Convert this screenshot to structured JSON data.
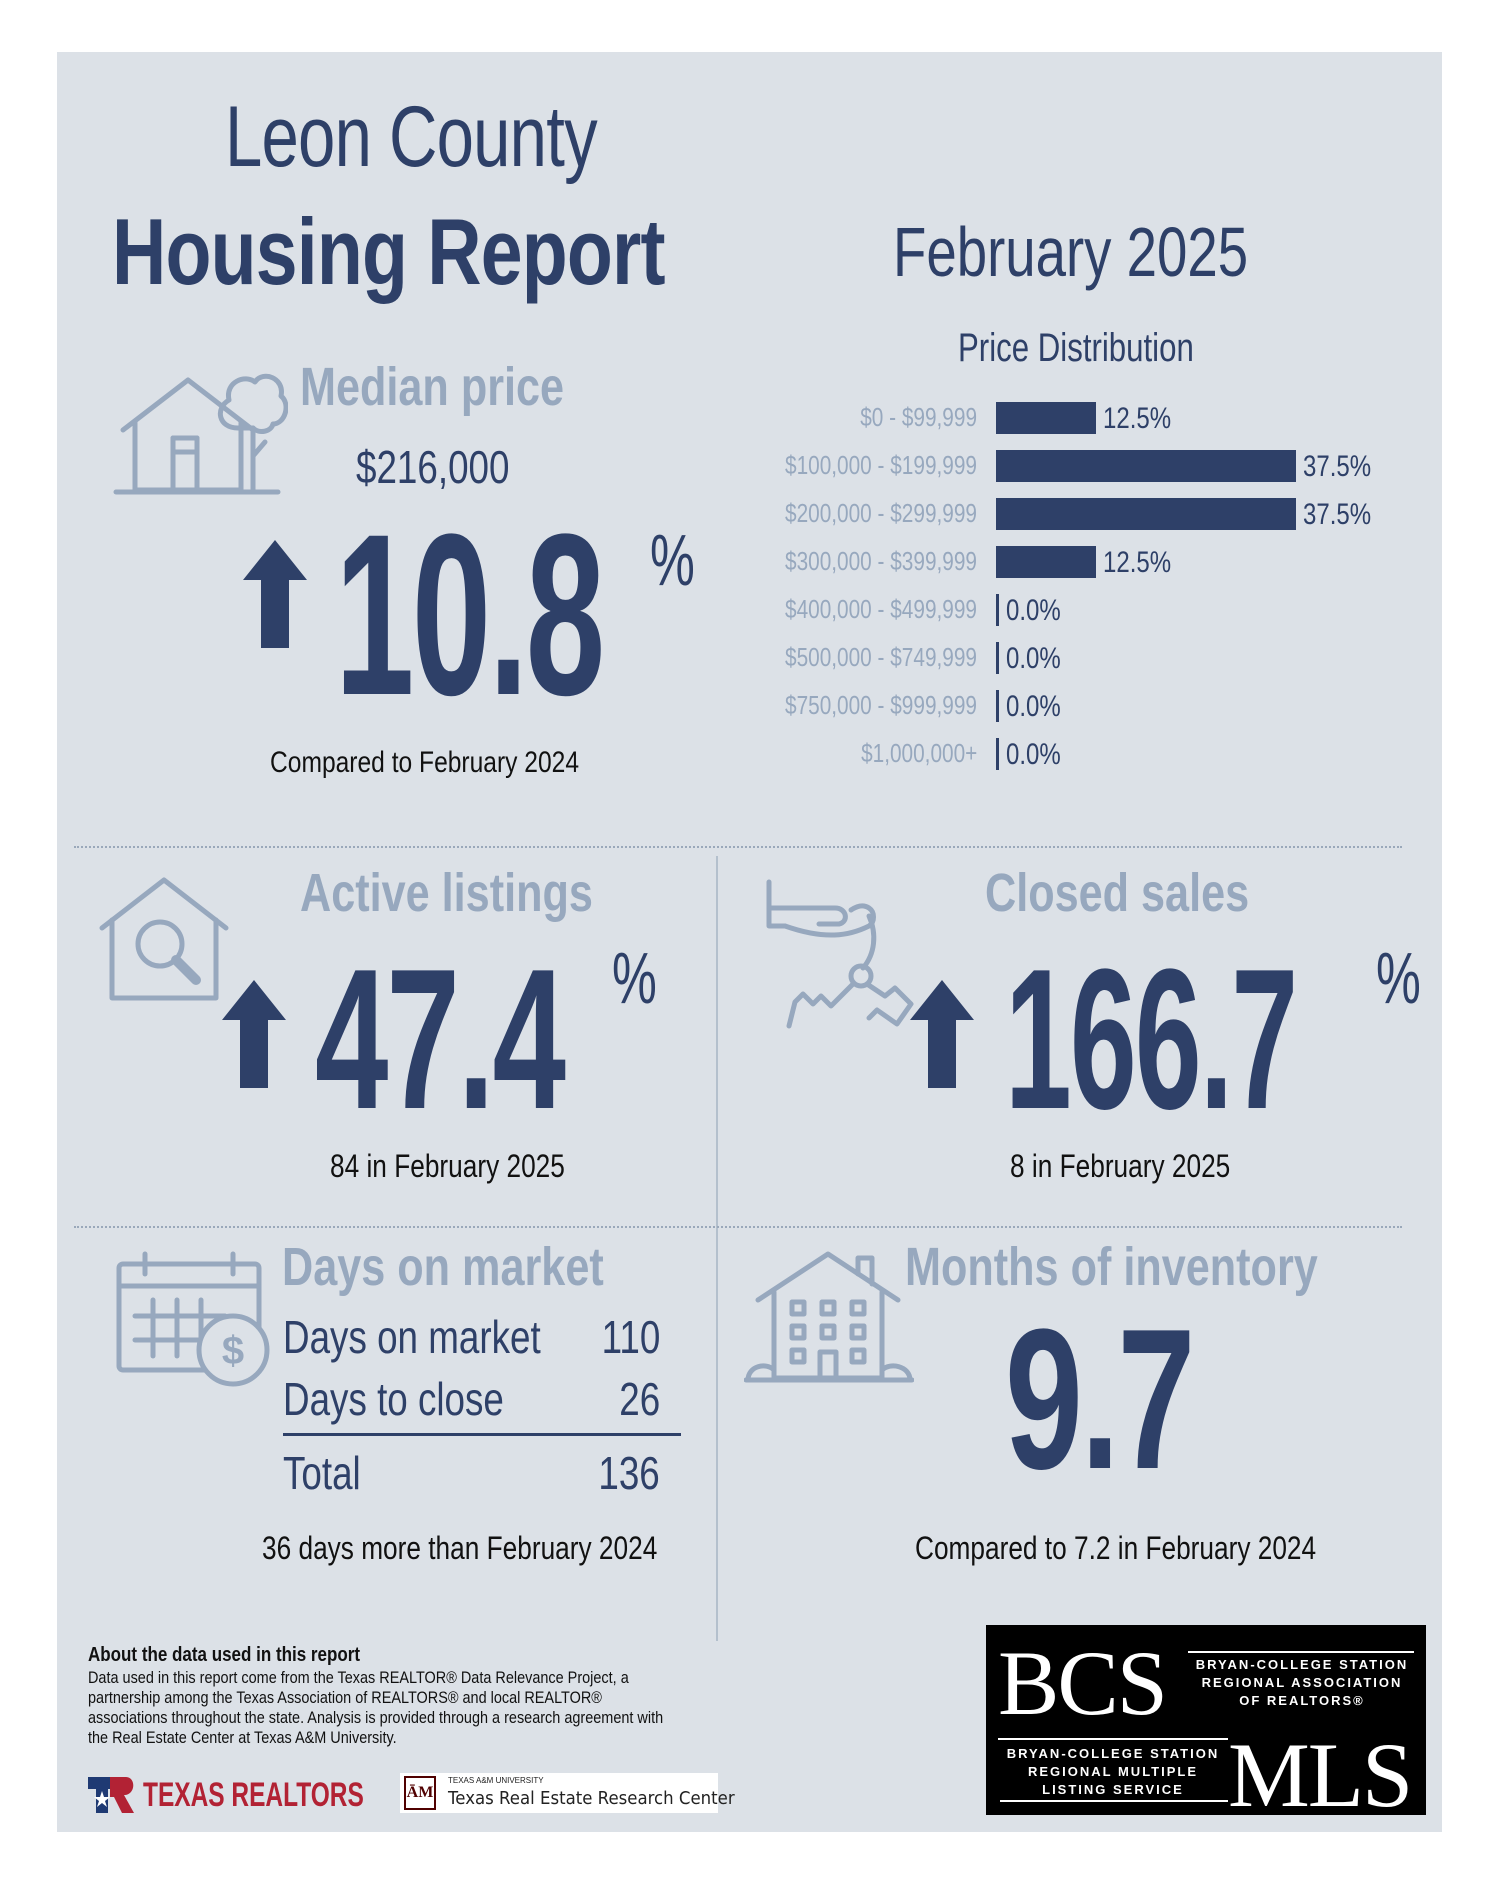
{
  "header": {
    "title_line1": "Leon County",
    "title_line2": "Housing Report",
    "month": "February 2025"
  },
  "median_price": {
    "label": "Median price",
    "value": "$216,000",
    "change_pct": "10.8",
    "pct_sign": "%",
    "direction": "up",
    "note": "Compared to February 2024"
  },
  "price_distribution": {
    "title": "Price Distribution",
    "rows": [
      {
        "label": "$0 - $99,999",
        "value": "12.5%",
        "pct": 12.5
      },
      {
        "label": "$100,000 - $199,999",
        "value": "37.5%",
        "pct": 37.5
      },
      {
        "label": "$200,000 - $299,999",
        "value": "37.5%",
        "pct": 37.5
      },
      {
        "label": "$300,000 - $399,999",
        "value": "12.5%",
        "pct": 12.5
      },
      {
        "label": "$400,000 - $499,999",
        "value": "0.0%",
        "pct": 0
      },
      {
        "label": "$500,000 - $749,999",
        "value": "0.0%",
        "pct": 0
      },
      {
        "label": "$750,000 - $999,999",
        "value": "0.0%",
        "pct": 0
      },
      {
        "label": "$1,000,000+",
        "value": "0.0%",
        "pct": 0
      }
    ]
  },
  "active_listings": {
    "label": "Active listings",
    "change_pct": "47.4",
    "pct_sign": "%",
    "direction": "up",
    "note": "84 in February 2025"
  },
  "closed_sales": {
    "label": "Closed sales",
    "change_pct": "166.7",
    "pct_sign": "%",
    "direction": "up",
    "note": "8 in February 2025"
  },
  "days_on_market": {
    "label": "Days on market",
    "rows": [
      {
        "label": "Days on market",
        "value": "110"
      },
      {
        "label": "Days to close",
        "value": "26"
      },
      {
        "label": "Total",
        "value": "136"
      }
    ],
    "note": "36 days more than February 2024"
  },
  "months_inventory": {
    "label": "Months of inventory",
    "value": "9.7",
    "note": "Compared to 7.2 in February 2024"
  },
  "footer": {
    "about_title": "About the data used in this report",
    "about_text": "Data used in this report come from the Texas REALTOR® Data Relevance Project, a partnership among the Texas Association of REALTORS® and local REALTOR® associations throughout the state. Analysis is provided through a research agreement with the Real Estate Center at Texas A&M University.",
    "texas_realtors": "TEXAS REALTORS",
    "tamu_small": "TEXAS A&M UNIVERSITY",
    "tamu_name": "Texas Real Estate Research Center",
    "tamu_mark": "ĀM",
    "bcs_big": "BCS",
    "bcs_sub": "BRYAN-COLLEGE STATION REGIONAL ASSOCIATION OF REALTORS®",
    "mls_sub": "BRYAN-COLLEGE STATION REGIONAL MULTIPLE LISTING SERVICE",
    "mls_big": "MLS"
  },
  "colors": {
    "navy": "#2e4068",
    "grey": "#97a8be",
    "background": "#dce1e7",
    "brand_red": "#b22234"
  },
  "icons": [
    "house-tree-icon",
    "house-search-icon",
    "hand-keys-icon",
    "calendar-dollar-icon",
    "apartment-building-icon",
    "up-arrow-icon"
  ]
}
